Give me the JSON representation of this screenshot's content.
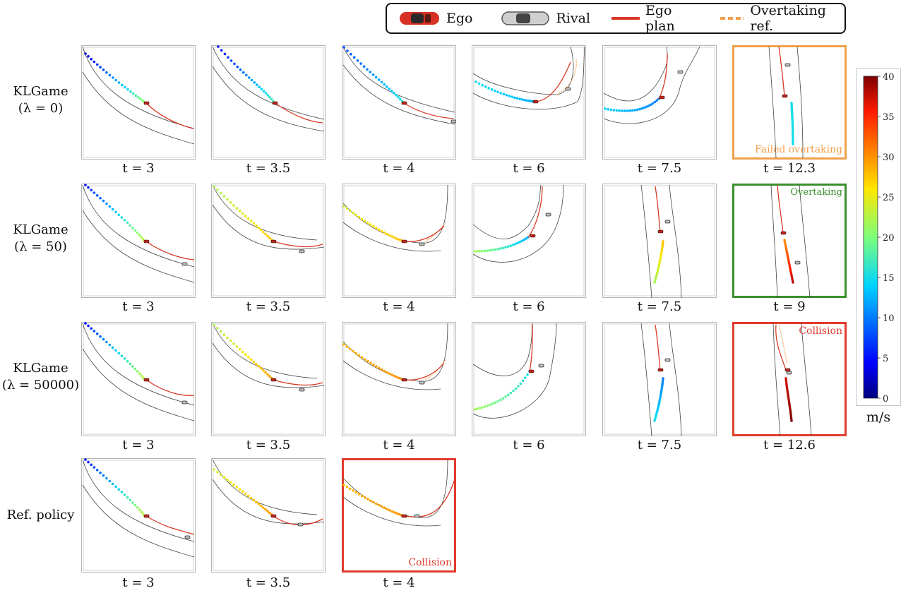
{
  "legend": {
    "ego": "Ego",
    "rival": "Rival",
    "ego_plan": "Ego plan",
    "overtaking_ref": "Overtaking ref."
  },
  "rows": [
    {
      "label_line1": "KLGame",
      "label_line2": "(λ = 0)",
      "times": [
        "t = 3",
        "t = 3.5",
        "t = 4",
        "t = 6",
        "t = 7.5",
        "t = 12.3"
      ]
    },
    {
      "label_line1": "KLGame",
      "label_line2": "(λ = 50)",
      "times": [
        "t = 3",
        "t = 3.5",
        "t = 4",
        "t = 6",
        "t = 7.5",
        "t = 9"
      ]
    },
    {
      "label_line1": "KLGame",
      "label_line2": "(λ = 50000)",
      "times": [
        "t = 3",
        "t = 3.5",
        "t = 4",
        "t = 6",
        "t = 7.5",
        "t = 12.6"
      ]
    },
    {
      "label_line1": "Ref. policy",
      "label_line2": "",
      "times": [
        "t = 3",
        "t = 3.5",
        "t = 4"
      ]
    }
  ],
  "annotations": {
    "r1": {
      "text": "Failed overtaking",
      "color": "#f0a04b"
    },
    "r2": {
      "text": "Overtaking",
      "color": "#3a8f2c"
    },
    "r3": {
      "text": "Collision",
      "color": "#e23b2e"
    },
    "r4": {
      "text": "Collision",
      "color": "#e23b2e"
    }
  },
  "colorbar": {
    "ticks": [
      "0",
      "5",
      "10",
      "15",
      "20",
      "25",
      "30",
      "35",
      "40"
    ],
    "unit": "m/s",
    "min": 0,
    "max": 40
  },
  "colors": {
    "ego_plan": "#d93a26",
    "overtaking_ref": "#f0a04b",
    "failed_border": "#f0a04b",
    "success_border": "#3a8f2c",
    "collision_border": "#e23b2e"
  }
}
